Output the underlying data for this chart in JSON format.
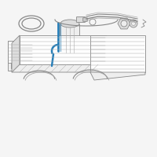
{
  "fig_bg": "#f5f5f5",
  "line_color": "#aaaaaa",
  "dark_line": "#888888",
  "highlight_color": "#2980b9",
  "white_fill": "#ffffff",
  "light_fill": "#eeeeee",
  "mid_fill": "#dddddd"
}
